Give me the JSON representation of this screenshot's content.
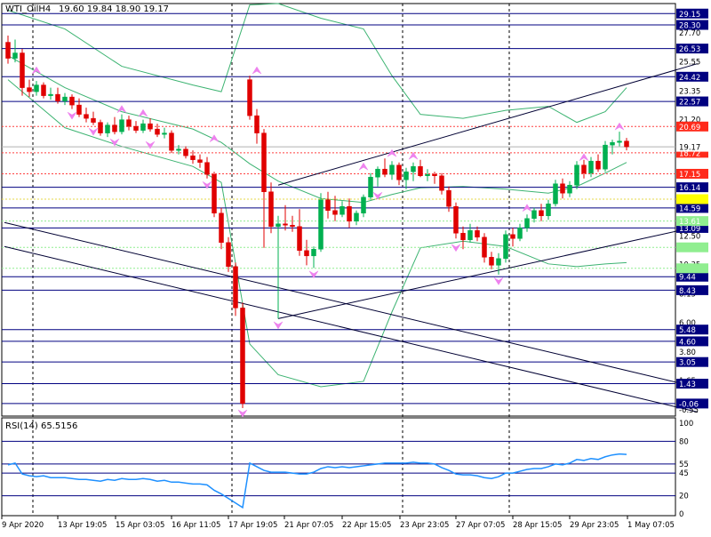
{
  "header": {
    "symbol_tf": "WTI_OilH4",
    "ohlc": "19.60 19.84 18.90 19.17"
  },
  "colors": {
    "bull": "#00b050",
    "bear": "#e00000",
    "bollinger": "#3cb371",
    "level_line": "#000080",
    "trend_line": "#000033",
    "rsi_line": "#1e90ff",
    "fractal": "#ee82ee",
    "red_dotted": "#ff4040",
    "yellow_dotted": "#e6d84a",
    "green_dotted": "#90ee90",
    "price_label_bg": "#000080",
    "red_label_bg": "#ff2a1a",
    "yellow_label_bg": "#ffff00",
    "green_label_bg": "#90ee90"
  },
  "chart_data": [
    {
      "type": "candlestick",
      "title": "WTI_OilH4",
      "ylim": [
        -1.0,
        29.9
      ],
      "x_labels": [
        "9 Apr 2020",
        "13 Apr 19:05",
        "15 Apr 03:05",
        "16 Apr 11:05",
        "17 Apr 19:05",
        "21 Apr 07:05",
        "22 Apr 15:05",
        "23 Apr 23:05",
        "27 Apr 07:05",
        "28 Apr 15:05",
        "29 Apr 23:05",
        "1 May 07:05"
      ],
      "y_axis_ticks": [
        "27.70",
        "25.55",
        "23.35",
        "21.20",
        "19.05",
        "12.50",
        "10.35",
        "8.15",
        "6.00",
        "3.80",
        "1.65",
        "-0.55"
      ],
      "candles": [
        {
          "o": 27.0,
          "h": 27.5,
          "l": 25.4,
          "c": 25.8
        },
        {
          "o": 25.8,
          "h": 27.2,
          "l": 25.5,
          "c": 26.2
        },
        {
          "o": 26.2,
          "h": 26.5,
          "l": 23.0,
          "c": 23.6
        },
        {
          "o": 23.6,
          "h": 24.2,
          "l": 22.9,
          "c": 23.3
        },
        {
          "o": 23.3,
          "h": 24.1,
          "l": 23.0,
          "c": 23.8
        },
        {
          "o": 23.8,
          "h": 24.0,
          "l": 22.8,
          "c": 23.0
        },
        {
          "o": 23.0,
          "h": 23.6,
          "l": 22.7,
          "c": 23.1
        },
        {
          "o": 23.1,
          "h": 23.6,
          "l": 22.4,
          "c": 22.6
        },
        {
          "o": 22.6,
          "h": 23.2,
          "l": 22.3,
          "c": 22.9
        },
        {
          "o": 22.9,
          "h": 23.1,
          "l": 22.0,
          "c": 22.3
        },
        {
          "o": 22.3,
          "h": 22.8,
          "l": 21.4,
          "c": 21.6
        },
        {
          "o": 21.6,
          "h": 22.1,
          "l": 21.0,
          "c": 21.3
        },
        {
          "o": 21.3,
          "h": 21.8,
          "l": 20.8,
          "c": 21.0
        },
        {
          "o": 21.0,
          "h": 21.2,
          "l": 20.0,
          "c": 20.2
        },
        {
          "o": 20.2,
          "h": 21.0,
          "l": 19.9,
          "c": 20.8
        },
        {
          "o": 20.8,
          "h": 21.4,
          "l": 20.1,
          "c": 20.3
        },
        {
          "o": 20.3,
          "h": 21.6,
          "l": 20.1,
          "c": 21.2
        },
        {
          "o": 21.2,
          "h": 21.5,
          "l": 20.4,
          "c": 20.7
        },
        {
          "o": 20.7,
          "h": 21.1,
          "l": 20.2,
          "c": 20.4
        },
        {
          "o": 20.4,
          "h": 21.2,
          "l": 20.2,
          "c": 20.9
        },
        {
          "o": 20.9,
          "h": 21.3,
          "l": 20.3,
          "c": 20.5
        },
        {
          "o": 20.5,
          "h": 20.9,
          "l": 19.9,
          "c": 20.1
        },
        {
          "o": 20.1,
          "h": 20.6,
          "l": 19.8,
          "c": 20.2
        },
        {
          "o": 20.2,
          "h": 20.4,
          "l": 18.7,
          "c": 18.9
        },
        {
          "o": 18.9,
          "h": 19.3,
          "l": 18.6,
          "c": 19.0
        },
        {
          "o": 19.0,
          "h": 19.2,
          "l": 18.3,
          "c": 18.5
        },
        {
          "o": 18.5,
          "h": 18.9,
          "l": 17.9,
          "c": 18.2
        },
        {
          "o": 18.2,
          "h": 18.6,
          "l": 17.6,
          "c": 18.0
        },
        {
          "o": 18.0,
          "h": 18.4,
          "l": 16.8,
          "c": 17.1
        },
        {
          "o": 17.1,
          "h": 17.3,
          "l": 13.9,
          "c": 14.2
        },
        {
          "o": 14.2,
          "h": 14.6,
          "l": 11.5,
          "c": 12.0
        },
        {
          "o": 12.0,
          "h": 12.4,
          "l": 9.8,
          "c": 10.2
        },
        {
          "o": 10.2,
          "h": 10.5,
          "l": 6.5,
          "c": 7.1
        },
        {
          "o": 7.1,
          "h": 7.5,
          "l": -0.4,
          "c": -0.06
        },
        {
          "o": 24.2,
          "h": 24.5,
          "l": 21.2,
          "c": 21.5
        },
        {
          "o": 21.5,
          "h": 22.0,
          "l": 19.4,
          "c": 20.2
        },
        {
          "o": 20.2,
          "h": 20.5,
          "l": 11.6,
          "c": 15.8
        },
        {
          "o": 15.8,
          "h": 16.5,
          "l": 12.7,
          "c": 13.2
        },
        {
          "o": 13.2,
          "h": 14.0,
          "l": 6.3,
          "c": 13.4
        },
        {
          "o": 13.4,
          "h": 14.8,
          "l": 12.9,
          "c": 13.3
        },
        {
          "o": 13.3,
          "h": 14.0,
          "l": 12.8,
          "c": 13.2
        },
        {
          "o": 13.2,
          "h": 14.5,
          "l": 11.0,
          "c": 11.4
        },
        {
          "o": 11.4,
          "h": 12.2,
          "l": 10.3,
          "c": 11.0
        },
        {
          "o": 11.0,
          "h": 11.7,
          "l": 10.1,
          "c": 11.5
        },
        {
          "o": 11.5,
          "h": 15.7,
          "l": 11.3,
          "c": 15.2
        },
        {
          "o": 15.2,
          "h": 15.8,
          "l": 13.8,
          "c": 14.4
        },
        {
          "o": 14.4,
          "h": 15.5,
          "l": 13.6,
          "c": 14.1
        },
        {
          "o": 14.1,
          "h": 15.1,
          "l": 13.9,
          "c": 14.7
        },
        {
          "o": 14.7,
          "h": 15.3,
          "l": 13.1,
          "c": 13.6
        },
        {
          "o": 13.6,
          "h": 14.4,
          "l": 13.3,
          "c": 14.2
        },
        {
          "o": 14.2,
          "h": 15.6,
          "l": 13.9,
          "c": 15.4
        },
        {
          "o": 15.4,
          "h": 17.2,
          "l": 15.2,
          "c": 16.9
        },
        {
          "o": 16.9,
          "h": 17.7,
          "l": 16.2,
          "c": 17.5
        },
        {
          "o": 17.5,
          "h": 18.3,
          "l": 16.9,
          "c": 17.1
        },
        {
          "o": 17.1,
          "h": 18.1,
          "l": 16.7,
          "c": 17.8
        },
        {
          "o": 17.8,
          "h": 18.0,
          "l": 16.3,
          "c": 16.7
        },
        {
          "o": 16.7,
          "h": 17.6,
          "l": 16.0,
          "c": 17.3
        },
        {
          "o": 17.3,
          "h": 18.0,
          "l": 16.6,
          "c": 17.7
        },
        {
          "o": 17.7,
          "h": 18.2,
          "l": 16.9,
          "c": 17.0
        },
        {
          "o": 17.0,
          "h": 17.5,
          "l": 16.6,
          "c": 17.1
        },
        {
          "o": 17.1,
          "h": 17.3,
          "l": 16.4,
          "c": 17.0
        },
        {
          "o": 17.0,
          "h": 17.2,
          "l": 15.6,
          "c": 15.9
        },
        {
          "o": 15.9,
          "h": 16.2,
          "l": 14.3,
          "c": 14.7
        },
        {
          "o": 14.7,
          "h": 15.0,
          "l": 12.3,
          "c": 12.7
        },
        {
          "o": 12.7,
          "h": 13.2,
          "l": 11.5,
          "c": 12.2
        },
        {
          "o": 12.2,
          "h": 13.4,
          "l": 12.0,
          "c": 12.9
        },
        {
          "o": 12.9,
          "h": 13.2,
          "l": 12.1,
          "c": 12.4
        },
        {
          "o": 12.4,
          "h": 12.7,
          "l": 10.5,
          "c": 10.9
        },
        {
          "o": 10.9,
          "h": 11.3,
          "l": 10.0,
          "c": 10.3
        },
        {
          "o": 10.3,
          "h": 11.2,
          "l": 9.6,
          "c": 10.8
        },
        {
          "o": 10.8,
          "h": 12.9,
          "l": 10.5,
          "c": 12.6
        },
        {
          "o": 12.6,
          "h": 13.1,
          "l": 11.7,
          "c": 12.3
        },
        {
          "o": 12.3,
          "h": 13.4,
          "l": 12.1,
          "c": 13.1
        },
        {
          "o": 13.1,
          "h": 14.1,
          "l": 12.8,
          "c": 13.8
        },
        {
          "o": 13.8,
          "h": 14.6,
          "l": 13.5,
          "c": 14.4
        },
        {
          "o": 14.4,
          "h": 14.9,
          "l": 13.6,
          "c": 14.0
        },
        {
          "o": 14.0,
          "h": 15.2,
          "l": 13.7,
          "c": 14.9
        },
        {
          "o": 14.9,
          "h": 16.7,
          "l": 14.7,
          "c": 16.4
        },
        {
          "o": 16.4,
          "h": 16.8,
          "l": 15.3,
          "c": 15.7
        },
        {
          "o": 15.7,
          "h": 16.6,
          "l": 15.4,
          "c": 16.3
        },
        {
          "o": 16.3,
          "h": 18.1,
          "l": 16.0,
          "c": 17.8
        },
        {
          "o": 17.8,
          "h": 18.2,
          "l": 16.8,
          "c": 17.2
        },
        {
          "o": 17.2,
          "h": 18.4,
          "l": 16.9,
          "c": 18.1
        },
        {
          "o": 18.1,
          "h": 18.6,
          "l": 17.3,
          "c": 17.5
        },
        {
          "o": 17.5,
          "h": 19.6,
          "l": 17.3,
          "c": 19.3
        },
        {
          "o": 19.3,
          "h": 19.7,
          "l": 18.6,
          "c": 19.5
        },
        {
          "o": 19.5,
          "h": 20.3,
          "l": 19.2,
          "c": 19.6
        },
        {
          "o": 19.6,
          "h": 19.84,
          "l": 18.9,
          "c": 19.17
        }
      ],
      "bollinger": {
        "upper": [
          [
            0,
            29.4
          ],
          [
            8,
            28.0
          ],
          [
            16,
            25.2
          ],
          [
            26,
            23.8
          ],
          [
            30,
            23.3
          ],
          [
            34,
            29.8
          ],
          [
            38,
            29.9
          ],
          [
            44,
            28.8
          ],
          [
            50,
            28.0
          ],
          [
            54,
            24.5
          ],
          [
            58,
            21.6
          ],
          [
            64,
            21.3
          ],
          [
            70,
            21.9
          ],
          [
            76,
            22.2
          ],
          [
            80,
            21.0
          ],
          [
            84,
            21.8
          ],
          [
            87,
            23.6
          ]
        ],
        "mid": [
          [
            0,
            26.0
          ],
          [
            8,
            23.6
          ],
          [
            16,
            21.8
          ],
          [
            26,
            20.5
          ],
          [
            30,
            19.5
          ],
          [
            34,
            17.9
          ],
          [
            38,
            16.6
          ],
          [
            44,
            15.3
          ],
          [
            50,
            15.0
          ],
          [
            54,
            15.6
          ],
          [
            58,
            16.1
          ],
          [
            64,
            16.2
          ],
          [
            70,
            16.0
          ],
          [
            76,
            15.7
          ],
          [
            80,
            16.2
          ],
          [
            84,
            17.2
          ],
          [
            87,
            18.0
          ]
        ],
        "lower": [
          [
            0,
            24.2
          ],
          [
            8,
            20.6
          ],
          [
            16,
            19.2
          ],
          [
            26,
            17.7
          ],
          [
            30,
            16.5
          ],
          [
            34,
            4.4
          ],
          [
            38,
            2.1
          ],
          [
            44,
            1.2
          ],
          [
            50,
            1.6
          ],
          [
            54,
            6.8
          ],
          [
            58,
            11.6
          ],
          [
            64,
            12.1
          ],
          [
            70,
            11.7
          ],
          [
            76,
            10.4
          ],
          [
            80,
            10.2
          ],
          [
            84,
            10.4
          ],
          [
            87,
            10.5
          ]
        ]
      },
      "fractals_up": [
        [
          4,
          24.5
        ],
        [
          16,
          21.6
        ],
        [
          19,
          21.3
        ],
        [
          29,
          19.4
        ],
        [
          35,
          24.5
        ],
        [
          50,
          17.3
        ],
        [
          54,
          18.3
        ],
        [
          57,
          18.1
        ],
        [
          73,
          14.2
        ],
        [
          81,
          18.0
        ],
        [
          86,
          20.3
        ]
      ],
      "fractals_down": [
        [
          9,
          21.9
        ],
        [
          12,
          20.7
        ],
        [
          15,
          19.9
        ],
        [
          20,
          19.7
        ],
        [
          28,
          16.7
        ],
        [
          33,
          -0.4
        ],
        [
          38,
          6.2
        ],
        [
          43,
          10.0
        ],
        [
          52,
          15.9
        ],
        [
          63,
          12.0
        ],
        [
          69,
          9.5
        ]
      ],
      "levels": [
        {
          "value": 29.15,
          "label": "29.15"
        },
        {
          "value": 28.3,
          "label": "28.30"
        },
        {
          "value": 26.53,
          "label": "26.53"
        },
        {
          "value": 24.42,
          "label": "24.42"
        },
        {
          "value": 22.57,
          "label": "22.57"
        },
        {
          "value": 16.14,
          "label": "16.14"
        },
        {
          "value": 14.59,
          "label": "14.59"
        },
        {
          "value": 13.09,
          "label": "13.09"
        },
        {
          "value": 9.44,
          "label": "9.44"
        },
        {
          "value": 8.43,
          "label": "8.43"
        },
        {
          "value": 5.48,
          "label": "5.48"
        },
        {
          "value": 4.6,
          "label": "4.60"
        },
        {
          "value": 3.05,
          "label": "3.05"
        },
        {
          "value": 1.43,
          "label": "1.43"
        },
        {
          "value": -0.06,
          "label": "-0.06"
        }
      ],
      "red_dotted_levels": [
        {
          "value": 20.69,
          "label": "20.69"
        },
        {
          "value": 18.72,
          "label": "18.72"
        },
        {
          "value": 17.15,
          "label": "17.15"
        }
      ],
      "yellow_dotted_levels": [
        {
          "value": 15.25,
          "label": ""
        }
      ],
      "green_dotted_levels": [
        {
          "value": 13.61,
          "label": "13.61"
        },
        {
          "value": 11.64,
          "label": ""
        },
        {
          "value": 10.07,
          "label": ""
        }
      ],
      "current_price": {
        "value": 19.17,
        "label": "19.17"
      },
      "trendlines": [
        {
          "points": [
            [
              -0.5,
              13.5
            ],
            [
              97,
              1.15
            ]
          ]
        },
        {
          "points": [
            [
              -0.5,
              11.7
            ],
            [
              97,
              -0.7
            ]
          ]
        },
        {
          "points": [
            [
              38,
              6.3
            ],
            [
              97,
              13.2
            ]
          ]
        },
        {
          "points": [
            [
              38,
              16.3
            ],
            [
              97,
              25.4
            ]
          ]
        }
      ],
      "vertical_markers": [
        3,
        31,
        55,
        70
      ]
    },
    {
      "type": "line",
      "title": "RSI(14) 65.5156",
      "ylim": [
        0,
        100
      ],
      "y_axis_ticks": [
        "100",
        "80",
        "55",
        "45",
        "20",
        "0"
      ],
      "levels": [
        80,
        55,
        45,
        20
      ],
      "values": [
        54,
        56,
        44,
        42,
        41,
        42,
        40,
        40,
        40,
        39,
        38,
        38,
        37,
        36,
        38,
        37,
        39,
        38,
        38,
        39,
        38,
        36,
        37,
        35,
        35,
        34,
        33,
        33,
        32,
        26,
        22,
        17,
        12,
        7,
        56,
        52,
        48,
        46,
        46,
        46,
        45,
        44,
        44,
        46,
        50,
        52,
        51,
        52,
        51,
        52,
        53,
        54,
        55,
        56,
        56,
        56,
        56,
        57,
        56,
        56,
        55,
        51,
        48,
        44,
        43,
        43,
        42,
        40,
        39,
        41,
        45,
        45,
        47,
        49,
        50,
        50,
        52,
        55,
        54,
        56,
        60,
        59,
        61,
        60,
        63,
        65,
        66,
        65.5156
      ]
    }
  ]
}
